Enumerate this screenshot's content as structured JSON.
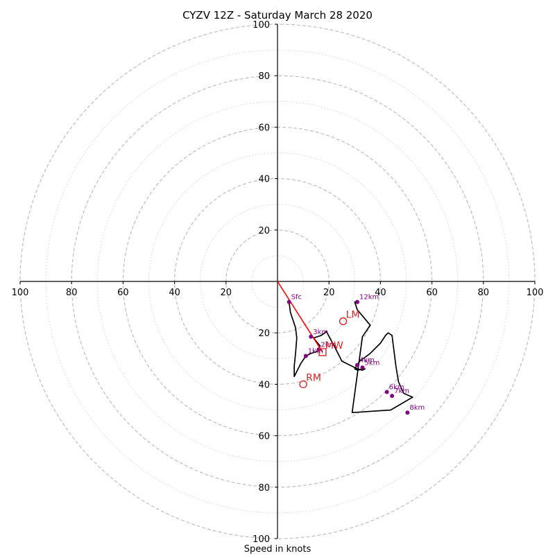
{
  "chart_data": {
    "type": "scatter",
    "title": "CYZV 12Z - Saturday March 28 2020",
    "xlabel": "Speed in knots",
    "ylabel": "",
    "rings": [
      20,
      40,
      60,
      80,
      100
    ],
    "minor_rings": [
      10,
      30,
      50,
      70,
      90
    ],
    "xlim": [
      -100,
      100
    ],
    "ylim": [
      -100,
      100
    ],
    "x_ticks": [
      {
        "value": -100,
        "label": "100"
      },
      {
        "value": -80,
        "label": "80"
      },
      {
        "value": -60,
        "label": "60"
      },
      {
        "value": -40,
        "label": "40"
      },
      {
        "value": -20,
        "label": "20"
      },
      {
        "value": 20,
        "label": "20"
      },
      {
        "value": 40,
        "label": "40"
      },
      {
        "value": 60,
        "label": "60"
      },
      {
        "value": 80,
        "label": "80"
      },
      {
        "value": 100,
        "label": "100"
      }
    ],
    "y_ticks": [
      {
        "value": 100,
        "label": "100"
      },
      {
        "value": 80,
        "label": "80"
      },
      {
        "value": 60,
        "label": "60"
      },
      {
        "value": 40,
        "label": "40"
      },
      {
        "value": 20,
        "label": "20"
      },
      {
        "value": -20,
        "label": "20"
      },
      {
        "value": -40,
        "label": "40"
      },
      {
        "value": -60,
        "label": "60"
      },
      {
        "value": -80,
        "label": "80"
      },
      {
        "value": -100,
        "label": "100"
      }
    ],
    "hodograph": {
      "color": "#000000",
      "u": [
        4.5,
        5,
        7,
        7.5,
        7,
        6.5,
        6.5,
        9,
        11,
        13,
        16,
        16.5,
        14,
        17,
        19,
        22,
        25,
        27,
        29,
        31,
        33,
        34,
        31,
        30,
        32,
        36,
        40,
        42,
        43,
        44.5,
        46,
        47,
        49,
        52.5,
        44,
        29,
        33,
        36,
        31,
        30,
        31
      ],
      "v": [
        -8,
        -12,
        -18,
        -22,
        -28,
        -33,
        -37,
        -32,
        -29,
        -28,
        -27,
        -25,
        -22,
        -21,
        -19.5,
        -25,
        -31,
        -32,
        -33,
        -34,
        -34.5,
        -34,
        -34.5,
        -34,
        -31,
        -28,
        -24,
        -21,
        -20,
        -21,
        -33,
        -39,
        -43.5,
        -45,
        -50,
        -51,
        -21.5,
        -17,
        -11,
        -8,
        -7.5
      ]
    },
    "levels": [
      {
        "label": "Sfc",
        "u": 4.5,
        "v": -8
      },
      {
        "label": "1km",
        "u": 11,
        "v": -29
      },
      {
        "label": "2km",
        "u": 16,
        "v": -26.5
      },
      {
        "label": "3km",
        "u": 13,
        "v": -21.5
      },
      {
        "label": "4km",
        "u": 31,
        "v": -32.5
      },
      {
        "label": "5km",
        "u": 33,
        "v": -33.5
      },
      {
        "label": "6km",
        "u": 42.5,
        "v": -43
      },
      {
        "label": "7km",
        "u": 44.5,
        "v": -44.5
      },
      {
        "label": "8km",
        "u": 50.5,
        "v": -51
      },
      {
        "label": "12km",
        "u": 31,
        "v": -8
      }
    ],
    "shear_vector": {
      "color": "#ff0000",
      "u0": 0,
      "v0": 0,
      "u1": 17.5,
      "v1": -27.5
    },
    "storm_motions": [
      {
        "label": "LM",
        "u": 25.5,
        "v": -15.5,
        "marker": "circle"
      },
      {
        "label": "MW",
        "u": 17.5,
        "v": -27.5,
        "marker": "square"
      },
      {
        "label": "RM",
        "u": 10,
        "v": -40,
        "marker": "circle"
      }
    ],
    "colors": {
      "hodograph": "#000000",
      "levels": "#800080",
      "storm_motion": "#d62728",
      "shear": "#ff0000",
      "grid": "#bdbdbd"
    },
    "grid": true
  }
}
